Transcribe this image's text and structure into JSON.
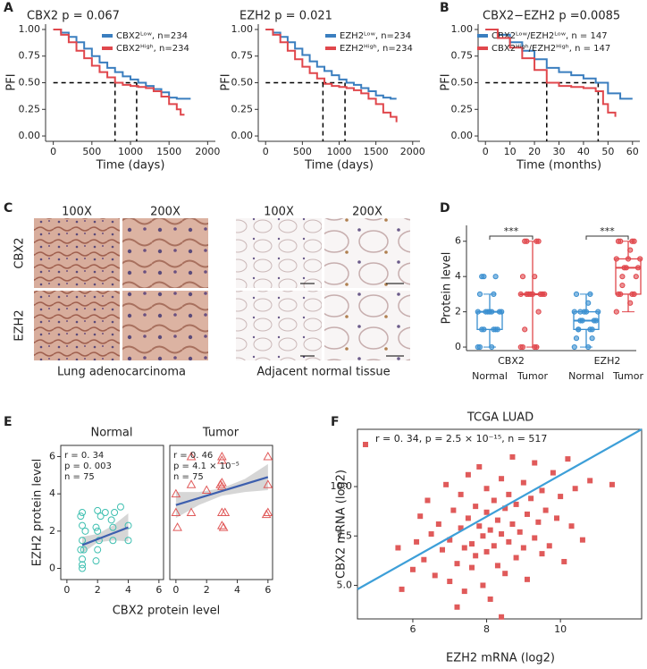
{
  "panel_labels": [
    "A",
    "B",
    "C",
    "D",
    "E",
    "F"
  ],
  "histology": {
    "magnifications": [
      "100X",
      "200X",
      "100X",
      "200X"
    ],
    "rows": [
      "CBX2",
      "EZH2"
    ],
    "captions": [
      "Lung adenocarcinoma",
      "Adjacent normal tissue"
    ]
  },
  "chart_data": [
    {
      "type": "survival",
      "title": "CBX2 p =  0.067",
      "xlabel": "Time (days)",
      "ylabel": "PFI",
      "xlim": [
        -100,
        2100
      ],
      "ylim": [
        -0.05,
        1.05
      ],
      "xticks": [
        0,
        500,
        1000,
        1500,
        2000
      ],
      "yticks": [
        {
          "value": 0,
          "label": "0.00"
        },
        {
          "value": 0.25,
          "label": "0.25"
        },
        {
          "value": 0.5,
          "label": "0.50"
        },
        {
          "value": 0.75,
          "label": "0.75"
        },
        {
          "value": 1,
          "label": "1.00"
        }
      ],
      "median_lines": {
        "y": 0.5,
        "x": [
          800,
          1080
        ]
      },
      "series": [
        {
          "name": "CBX2ᴸᵒʷ, n=234",
          "color": "#3a7ebf",
          "x": [
            0,
            100,
            200,
            300,
            400,
            500,
            600,
            700,
            800,
            900,
            1000,
            1100,
            1200,
            1300,
            1400,
            1500,
            1600,
            1700,
            1780
          ],
          "values": [
            1,
            0.97,
            0.93,
            0.88,
            0.82,
            0.75,
            0.69,
            0.64,
            0.6,
            0.56,
            0.53,
            0.5,
            0.47,
            0.44,
            0.41,
            0.36,
            0.35,
            0.35,
            0.35
          ]
        },
        {
          "name": "CBX2ᴴⁱᵍʰ, n=234",
          "color": "#e0474c",
          "x": [
            0,
            100,
            200,
            300,
            400,
            500,
            600,
            700,
            800,
            900,
            1000,
            1100,
            1200,
            1300,
            1400,
            1500,
            1600,
            1650,
            1700
          ],
          "values": [
            1,
            0.95,
            0.88,
            0.8,
            0.73,
            0.66,
            0.6,
            0.55,
            0.5,
            0.48,
            0.47,
            0.46,
            0.45,
            0.42,
            0.37,
            0.3,
            0.25,
            0.2,
            0.2
          ]
        }
      ]
    },
    {
      "type": "survival",
      "title": "EZH2 p =  0.021",
      "xlabel": "Time (days)",
      "ylabel": "PFI",
      "xlim": [
        -100,
        2100
      ],
      "ylim": [
        -0.05,
        1.05
      ],
      "xticks": [
        0,
        500,
        1000,
        1500,
        2000
      ],
      "yticks": [
        {
          "value": 0,
          "label": "0.00"
        },
        {
          "value": 0.25,
          "label": "0.25"
        },
        {
          "value": 0.5,
          "label": "0.50"
        },
        {
          "value": 0.75,
          "label": "0.75"
        },
        {
          "value": 1,
          "label": "1.00"
        }
      ],
      "median_lines": {
        "y": 0.5,
        "x": [
          780,
          1080
        ]
      },
      "series": [
        {
          "name": "EZH2ᴸᵒʷ, n=234",
          "color": "#3a7ebf",
          "x": [
            0,
            100,
            200,
            300,
            400,
            500,
            600,
            700,
            800,
            900,
            1000,
            1100,
            1200,
            1300,
            1400,
            1500,
            1600,
            1700,
            1780
          ],
          "values": [
            1,
            0.97,
            0.93,
            0.88,
            0.82,
            0.76,
            0.7,
            0.65,
            0.61,
            0.57,
            0.53,
            0.5,
            0.48,
            0.45,
            0.42,
            0.38,
            0.36,
            0.35,
            0.35
          ]
        },
        {
          "name": "EZH2ᴴⁱᵍʰ, n=234",
          "color": "#e0474c",
          "x": [
            0,
            100,
            200,
            300,
            400,
            500,
            600,
            700,
            800,
            900,
            1000,
            1100,
            1200,
            1300,
            1400,
            1500,
            1600,
            1700,
            1780
          ],
          "values": [
            1,
            0.95,
            0.88,
            0.8,
            0.72,
            0.65,
            0.59,
            0.54,
            0.49,
            0.47,
            0.46,
            0.45,
            0.43,
            0.4,
            0.35,
            0.3,
            0.22,
            0.18,
            0.13
          ]
        }
      ]
    },
    {
      "type": "survival",
      "title": "CBX2−EZH2 p =0.0085",
      "xlabel": "Time (months)",
      "ylabel": "PFI",
      "xlim": [
        -3,
        63
      ],
      "ylim": [
        -0.05,
        1.05
      ],
      "xticks": [
        0,
        10,
        20,
        30,
        40,
        50,
        60
      ],
      "yticks": [
        {
          "value": 0,
          "label": "0.00"
        },
        {
          "value": 0.25,
          "label": "0.25"
        },
        {
          "value": 0.5,
          "label": "0.50"
        },
        {
          "value": 0.75,
          "label": "0.75"
        },
        {
          "value": 1,
          "label": "1.00"
        }
      ],
      "median_lines": {
        "y": 0.5,
        "x": [
          25,
          46
        ]
      },
      "series": [
        {
          "name": "CBX2ᴸᵒʷ/EZH2ᴸᵒʷ, n = 147",
          "color": "#3a7ebf",
          "x": [
            0,
            5,
            10,
            15,
            20,
            25,
            30,
            35,
            40,
            45,
            50,
            55,
            60
          ],
          "values": [
            1,
            0.95,
            0.88,
            0.8,
            0.72,
            0.64,
            0.6,
            0.57,
            0.54,
            0.5,
            0.4,
            0.35,
            0.35
          ]
        },
        {
          "name": "CBX2ᴴⁱᵍʰ/EZH2ᴴⁱᵍʰ, n = 147",
          "color": "#e0474c",
          "x": [
            0,
            5,
            10,
            15,
            20,
            25,
            30,
            35,
            40,
            45,
            48,
            50,
            53
          ],
          "values": [
            1,
            0.92,
            0.83,
            0.73,
            0.62,
            0.5,
            0.47,
            0.46,
            0.45,
            0.42,
            0.3,
            0.22,
            0.18
          ]
        }
      ]
    },
    {
      "type": "box",
      "ylabel": "Protein level",
      "ylim": [
        -0.2,
        6.9
      ],
      "yticks": [
        0,
        2,
        4,
        6
      ],
      "groups": [
        "CBX2",
        "EZH2"
      ],
      "categories": [
        "Normal",
        "Tumor",
        "Normal",
        "Tumor"
      ],
      "colors": [
        "#3a8fd0",
        "#e0474c",
        "#3a8fd0",
        "#e0474c"
      ],
      "significance": [
        "***",
        "***"
      ],
      "boxes": [
        {
          "min": 0,
          "q1": 1,
          "median": 2,
          "q3": 2,
          "max": 3
        },
        {
          "min": 0,
          "q1": 3,
          "median": 3,
          "q3": 3,
          "max": 6
        },
        {
          "min": 0,
          "q1": 1,
          "median": 1.5,
          "q3": 2,
          "max": 3
        },
        {
          "min": 2,
          "q1": 3,
          "median": 4.5,
          "q3": 5,
          "max": 6
        }
      ],
      "points": [
        [
          0,
          0,
          0,
          1,
          1,
          1,
          1,
          1,
          2,
          2,
          2,
          2,
          2,
          2,
          2,
          3,
          3,
          4,
          4,
          4
        ],
        [
          0,
          0,
          0,
          0,
          1,
          2,
          3,
          3,
          3,
          3,
          3,
          3,
          3,
          3,
          4,
          4,
          6,
          6,
          6,
          6
        ],
        [
          0,
          0,
          0.5,
          1,
          1,
          1,
          1.5,
          1.5,
          1.5,
          1.5,
          2,
          2,
          2,
          2,
          2.5,
          3,
          3,
          1,
          0.5,
          2
        ],
        [
          2,
          2.5,
          3,
          3,
          3,
          3,
          4,
          4,
          4.5,
          4.5,
          4.5,
          5,
          5,
          5,
          5.5,
          6,
          6,
          6,
          6,
          3.5
        ]
      ]
    },
    {
      "type": "scatter",
      "title": "Normal",
      "xlabel": "CBX2 protein level",
      "ylabel": "EZH2 protein level",
      "panel_border": true,
      "xlim": [
        -0.4,
        6.3
      ],
      "ylim": [
        -0.6,
        6.6
      ],
      "xticks": [
        0,
        2,
        4,
        6
      ],
      "yticks": [
        0,
        2,
        4,
        6
      ],
      "marker": "circle",
      "color": "#3dbfb0",
      "fit_color": "#3d5fae",
      "annotations": [
        "r = 0. 34",
        "p = 0. 003",
        "n = 75"
      ],
      "x": [
        1,
        1,
        1,
        1.1,
        0.9,
        1,
        1.2,
        1,
        0.9,
        1,
        1.9,
        2,
        2.1,
        2,
        1.9,
        2.2,
        2,
        2.5,
        3,
        3,
        3.1,
        3.5,
        4,
        4,
        2.9
      ],
      "values": [
        0,
        0.2,
        0.5,
        1,
        1,
        1.5,
        2,
        2.3,
        2.8,
        3,
        0.4,
        1,
        1.5,
        2,
        2.2,
        2.8,
        3.1,
        3,
        1.5,
        2.2,
        3,
        3.3,
        1.5,
        2.3,
        2.6
      ],
      "fit": {
        "x": [
          1,
          4
        ],
        "values": [
          1.25,
          2.2
        ]
      },
      "ci": {
        "x": [
          1,
          2,
          3,
          4
        ],
        "lower": [
          0.8,
          1.4,
          1.5,
          1.45
        ],
        "upper": [
          1.7,
          1.85,
          2.3,
          2.95
        ]
      }
    },
    {
      "type": "scatter",
      "title": "Tumor",
      "panel_border": true,
      "xlim": [
        -0.4,
        6.3
      ],
      "ylim": [
        -0.6,
        6.6
      ],
      "xticks": [
        0,
        2,
        4,
        6
      ],
      "marker": "triangle",
      "color": "#e05a5a",
      "fit_color": "#3d5fae",
      "annotations": [
        "r = 0. 46",
        "p = 4.1 × 10⁻⁵",
        "n = 75"
      ],
      "x": [
        0,
        0,
        0.1,
        1,
        1,
        1,
        2,
        3,
        3,
        3,
        3,
        3,
        3,
        2.9,
        3.1,
        3.2,
        6,
        6,
        6,
        5.9
      ],
      "values": [
        3,
        4,
        2.2,
        3,
        4.5,
        6,
        4.2,
        2.3,
        3,
        4.4,
        4.6,
        6,
        5.8,
        4.5,
        2.2,
        3,
        3,
        4.5,
        6,
        2.9
      ],
      "fit": {
        "x": [
          0,
          6
        ],
        "values": [
          3.4,
          4.9
        ]
      },
      "ci": {
        "x": [
          0,
          1.5,
          3,
          4.5,
          6
        ],
        "lower": [
          2.7,
          3.4,
          3.9,
          4.1,
          4.2
        ],
        "upper": [
          4.1,
          4.1,
          4.3,
          4.8,
          5.6
        ]
      }
    },
    {
      "type": "scatter",
      "title": "TCGA LUAD",
      "xlabel": "EZH2 mRNA (log2)",
      "ylabel": "CBX2 mRNA (log2)",
      "panel_border": true,
      "xlim": [
        4.5,
        12.2
      ],
      "ylim": [
        3.3,
        12.9
      ],
      "xticks": [
        6,
        8,
        10
      ],
      "yticks": [
        {
          "value": 5,
          "label": "5.0"
        },
        {
          "value": 7.5,
          "label": "7.5"
        },
        {
          "value": 10,
          "label": "10.0"
        }
      ],
      "marker": "square",
      "color": "#e05a5a",
      "fit_color": "#3d9fd8",
      "annotations": [
        "r = 0. 34, p = 2.5 × 10⁻¹⁵, n = 517"
      ],
      "x": [
        5.6,
        5.7,
        6.0,
        6.1,
        6.2,
        6.3,
        6.4,
        6.5,
        6.6,
        6.7,
        6.8,
        6.9,
        7.0,
        7.0,
        7.1,
        7.2,
        7.3,
        7.3,
        7.4,
        7.4,
        7.5,
        7.5,
        7.6,
        7.6,
        7.7,
        7.7,
        7.8,
        7.8,
        7.9,
        7.9,
        8.0,
        8.0,
        8.0,
        8.1,
        8.1,
        8.2,
        8.2,
        8.3,
        8.3,
        8.4,
        8.4,
        8.5,
        8.5,
        8.6,
        8.6,
        8.7,
        8.7,
        8.8,
        8.8,
        8.9,
        9.0,
        9.0,
        9.1,
        9.1,
        9.2,
        9.3,
        9.3,
        9.4,
        9.5,
        9.5,
        9.6,
        9.7,
        9.8,
        9.9,
        10.0,
        10.1,
        10.2,
        10.3,
        10.4,
        10.6,
        10.8,
        11.4,
        7.2,
        8.4
      ],
      "values": [
        6.9,
        4.8,
        5.8,
        7.2,
        8.5,
        6.3,
        9.3,
        7.6,
        5.5,
        8.1,
        6.8,
        10.1,
        7.3,
        5.2,
        8.8,
        6.1,
        9.6,
        7.9,
        4.7,
        6.9,
        8.4,
        10.6,
        7.1,
        5.9,
        9.0,
        6.5,
        8.0,
        11.0,
        7.5,
        5.0,
        8.7,
        6.7,
        9.9,
        7.8,
        4.3,
        9.3,
        7.0,
        8.3,
        6.0,
        10.4,
        7.6,
        8.9,
        5.6,
        9.6,
        7.2,
        8.1,
        11.5,
        6.4,
        9.1,
        7.7,
        10.2,
        6.9,
        8.6,
        5.3,
        9.4,
        7.4,
        11.2,
        8.2,
        6.6,
        9.8,
        8.8,
        7.0,
        10.7,
        8.4,
        9.5,
        6.2,
        11.4,
        8.0,
        9.9,
        7.3,
        10.3,
        10.1,
        3.9,
        3.4
      ],
      "fit": {
        "x": [
          4.5,
          12.2
        ],
        "values": [
          4.8,
          12.9
        ]
      }
    }
  ]
}
